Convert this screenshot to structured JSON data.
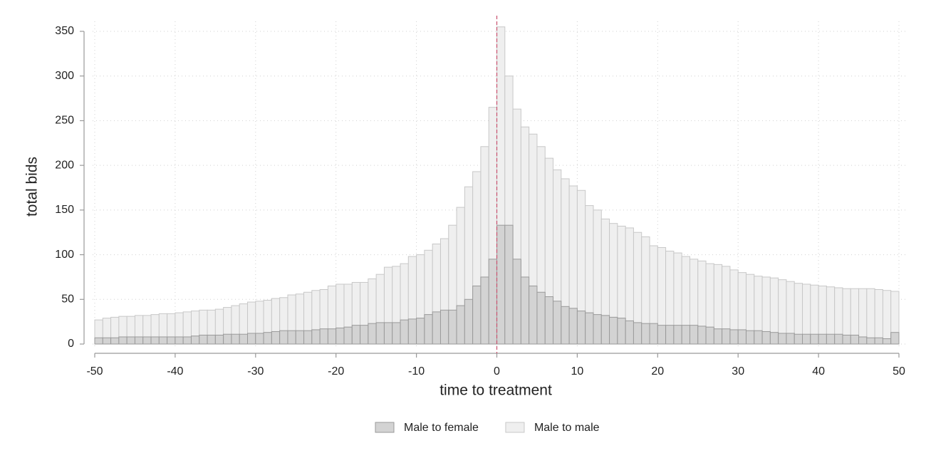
{
  "chart_data": {
    "type": "histogram",
    "xlabel": "time to treatment",
    "ylabel": "total bids",
    "bins": [
      -50,
      -49,
      -48,
      -47,
      -46,
      -45,
      -44,
      -43,
      -42,
      -41,
      -40,
      -39,
      -38,
      -37,
      -36,
      -35,
      -34,
      -33,
      -32,
      -31,
      -30,
      -29,
      -28,
      -27,
      -26,
      -25,
      -24,
      -23,
      -22,
      -21,
      -20,
      -19,
      -18,
      -17,
      -16,
      -15,
      -14,
      -13,
      -12,
      -11,
      -10,
      -9,
      -8,
      -7,
      -6,
      -5,
      -4,
      -3,
      -2,
      -1,
      0,
      1,
      2,
      3,
      4,
      5,
      6,
      7,
      8,
      9,
      10,
      11,
      12,
      13,
      14,
      15,
      16,
      17,
      18,
      19,
      20,
      21,
      22,
      23,
      24,
      25,
      26,
      27,
      28,
      29,
      30,
      31,
      32,
      33,
      34,
      35,
      36,
      37,
      38,
      39,
      40,
      41,
      42,
      43,
      44,
      45,
      46,
      47,
      48,
      49,
      50
    ],
    "series": [
      {
        "name": "Male to male",
        "color": "#efefef",
        "edge": "#c8c8c8",
        "values": [
          27,
          29,
          30,
          31,
          31,
          32,
          32,
          33,
          34,
          34,
          35,
          36,
          37,
          38,
          38,
          39,
          41,
          43,
          45,
          47,
          48,
          49,
          51,
          52,
          55,
          56,
          58,
          60,
          61,
          65,
          67,
          67,
          69,
          69,
          73,
          78,
          86,
          87,
          90,
          98,
          100,
          105,
          112,
          118,
          133,
          153,
          176,
          193,
          221,
          265,
          355,
          300,
          263,
          243,
          235,
          221,
          208,
          195,
          185,
          177,
          172,
          155,
          150,
          140,
          135,
          132,
          130,
          125,
          120,
          110,
          108,
          104,
          102,
          98,
          95,
          93,
          90,
          89,
          87,
          83,
          80,
          78,
          76,
          75,
          74,
          72,
          70,
          68,
          67,
          66,
          65,
          64,
          63,
          62,
          62,
          62,
          62,
          61,
          60,
          59
        ]
      },
      {
        "name": "Male to female",
        "color": "#d3d3d3",
        "edge": "#9a9a9a",
        "values": [
          7,
          7,
          7,
          8,
          8,
          8,
          8,
          8,
          8,
          8,
          8,
          8,
          9,
          10,
          10,
          10,
          11,
          11,
          11,
          12,
          12,
          13,
          14,
          15,
          15,
          15,
          15,
          16,
          17,
          17,
          18,
          19,
          21,
          21,
          23,
          24,
          24,
          24,
          27,
          28,
          29,
          33,
          36,
          38,
          38,
          43,
          50,
          65,
          75,
          95,
          133,
          133,
          95,
          75,
          65,
          58,
          53,
          48,
          42,
          40,
          37,
          35,
          33,
          32,
          30,
          29,
          26,
          24,
          23,
          23,
          21,
          21,
          21,
          21,
          21,
          20,
          19,
          17,
          17,
          16,
          16,
          15,
          15,
          14,
          13,
          12,
          12,
          11,
          11,
          11,
          11,
          11,
          11,
          10,
          10,
          8,
          7,
          7,
          6,
          13
        ]
      }
    ],
    "legend_order": [
      1,
      0
    ],
    "xlim": [
      -50,
      50
    ],
    "ylim": [
      0,
      350
    ],
    "xticks": [
      -50,
      -40,
      -30,
      -20,
      -10,
      0,
      10,
      20,
      30,
      40,
      50
    ],
    "yticks": [
      0,
      50,
      100,
      150,
      200,
      250,
      300,
      350
    ],
    "vline": 0,
    "vline_color": "#c8506e",
    "grid": true
  }
}
